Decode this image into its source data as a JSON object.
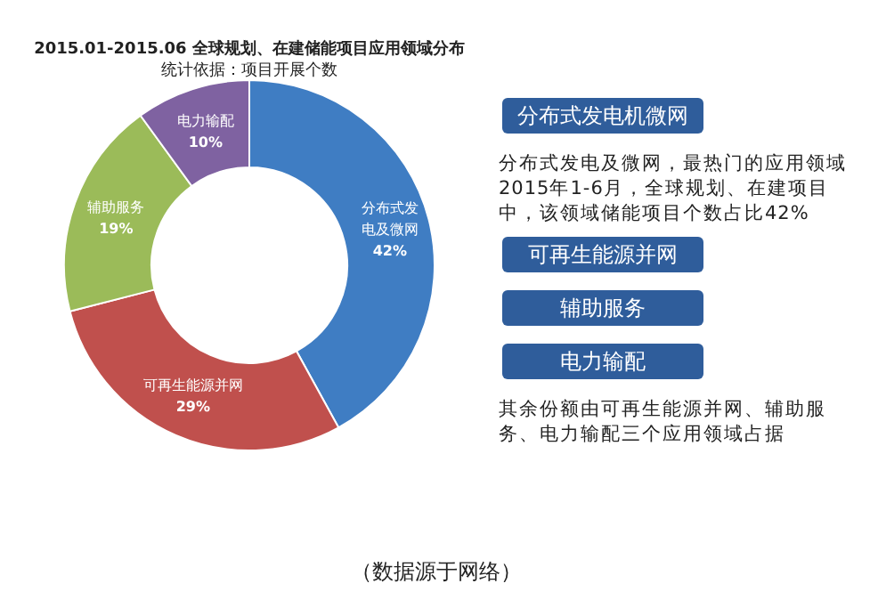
{
  "chart_data": [
    {
      "type": "donut",
      "title": "2015.01-2015.06 全球规划、在建储能项目应用领域分布",
      "subtitle": "统计依据：项目开展个数",
      "categories": [
        "分布式发电及微网",
        "可再生能源并网",
        "辅助服务",
        "电力输配"
      ],
      "values": [
        42,
        29,
        19,
        10
      ],
      "colors": [
        "#3f7dc3",
        "#c0504d",
        "#9bbb59",
        "#7f62a1"
      ],
      "value_labels": [
        "42%",
        "29%",
        "19%",
        "10%"
      ],
      "annotations": [
        "（数据源于网络）"
      ]
    },
    {
      "type": "other",
      "annotations": [
        "分布式发电机微网",
        "分布式发电及微网，最热门的应用领域2015年1-6月，全球规划、在建项目中，该领域储能项目个数占比42%",
        "可再生能源并网",
        "辅助服务",
        "电力输配",
        "其余份额由可再生能源并网、辅助服务、电力输配三个应用领域占据"
      ]
    }
  ]
}
